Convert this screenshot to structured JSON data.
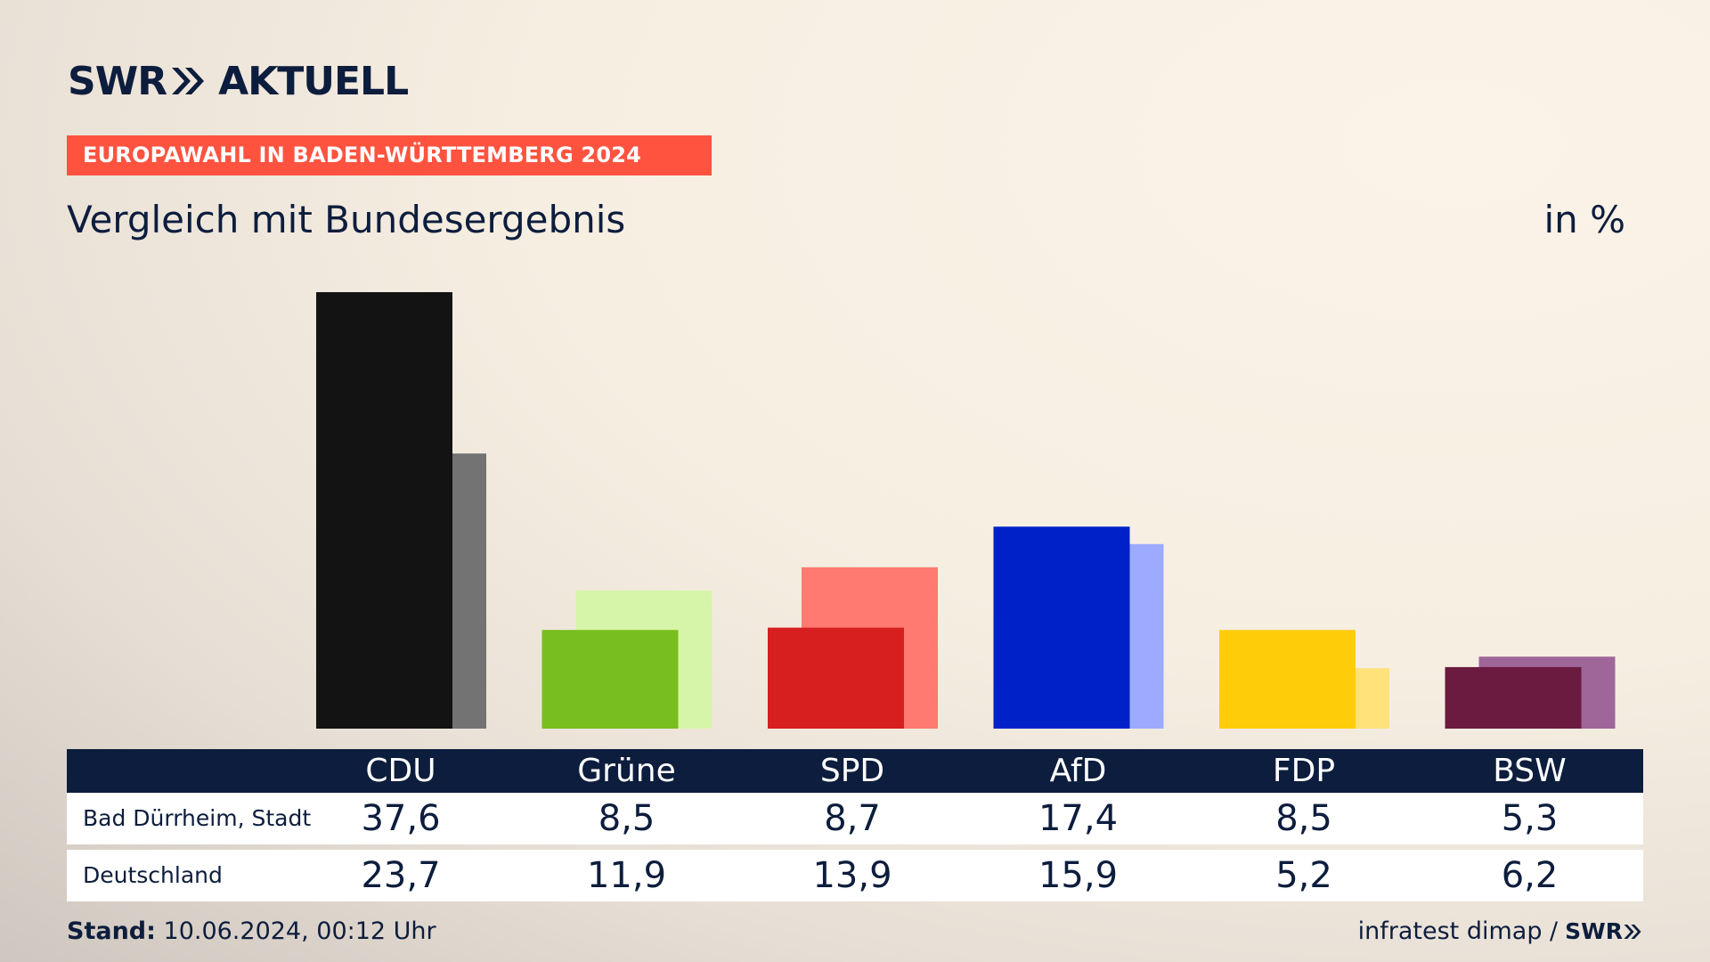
{
  "brand": {
    "logo_left": "SWR",
    "logo_right": "AKTUELL",
    "footer_logo": "SWR"
  },
  "badge": "EUROPAWAHL IN BADEN-WÜRTTEMBERG 2024",
  "subtitle": "Vergleich mit Bundesergebnis",
  "unit": "in %",
  "chart_data": {
    "type": "bar",
    "categories": [
      "CDU",
      "Grüne",
      "SPD",
      "AfD",
      "FDP",
      "BSW"
    ],
    "series": [
      {
        "name": "Bad Dürrheim, Stadt",
        "values": [
          37.6,
          8.5,
          8.7,
          17.4,
          8.5,
          5.3
        ]
      },
      {
        "name": "Deutschland",
        "values": [
          23.7,
          11.9,
          13.9,
          15.9,
          5.2,
          6.2
        ]
      }
    ],
    "colors_local": [
      "#131313",
      "#78be1e",
      "#d71f1f",
      "#0021c8",
      "#ffcc0a",
      "#6b1a40"
    ],
    "colors_national": [
      "#737373",
      "#d7f5a8",
      "#ff7a70",
      "#9caaff",
      "#ffe27a",
      "#9e6699"
    ],
    "ylim": [
      0,
      37.6
    ]
  },
  "table": {
    "headers": [
      "CDU",
      "Grüne",
      "SPD",
      "AfD",
      "FDP",
      "BSW"
    ],
    "rows": [
      {
        "label": "Bad Dürrheim, Stadt",
        "values": [
          "37,6",
          "8,5",
          "8,7",
          "17,4",
          "8,5",
          "5,3"
        ]
      },
      {
        "label": "Deutschland",
        "values": [
          "23,7",
          "11,9",
          "13,9",
          "15,9",
          "5,2",
          "6,2"
        ]
      }
    ]
  },
  "footer": {
    "stand_label": "Stand:",
    "stand_value": "10.06.2024, 00:12 Uhr",
    "source": "infratest dimap /"
  }
}
